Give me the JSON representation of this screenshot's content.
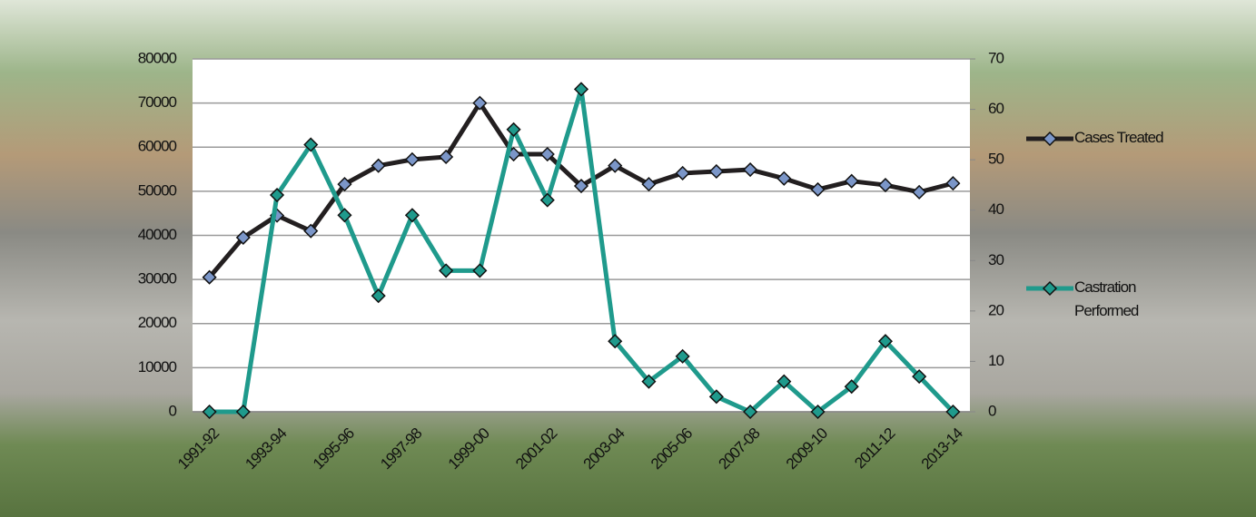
{
  "chart_data": {
    "type": "line",
    "categories": [
      "1991-92",
      null,
      "1993-94",
      null,
      "1995-96",
      null,
      "1997-98",
      null,
      "1999-00",
      null,
      "2001-02",
      null,
      "2003-04",
      null,
      "2005-06",
      null,
      "2007-08",
      null,
      "2009-10",
      null,
      "2011-12",
      null,
      "2013-14"
    ],
    "series": [
      {
        "name": "Cases Treated",
        "color": "#231f20",
        "marker_color": "#7b96c8",
        "values": [
          30500,
          39500,
          44500,
          41000,
          51600,
          55800,
          57200,
          57800,
          70000,
          58400,
          58400,
          51200,
          55800,
          51600,
          54100,
          54500,
          54900,
          52900,
          50400,
          52300,
          51400,
          49800,
          51800
        ]
      },
      {
        "name": "Castration Performed",
        "color": "#1f9a8c",
        "marker_color": "#1f9a8c",
        "axis": "y2",
        "values": [
          0,
          0,
          43,
          53,
          39,
          23,
          39,
          28,
          28,
          56,
          42,
          64,
          14,
          6,
          11,
          3,
          0,
          6,
          0,
          5,
          14,
          7,
          0
        ]
      }
    ],
    "ylim": [
      0,
      80000
    ],
    "yticks": [
      0,
      10000,
      20000,
      30000,
      40000,
      50000,
      60000,
      70000,
      80000
    ],
    "y2lim": [
      0,
      70
    ],
    "y2ticks": [
      0,
      10,
      20,
      30,
      40,
      50,
      60,
      70
    ],
    "grid": true,
    "legend": "right"
  }
}
